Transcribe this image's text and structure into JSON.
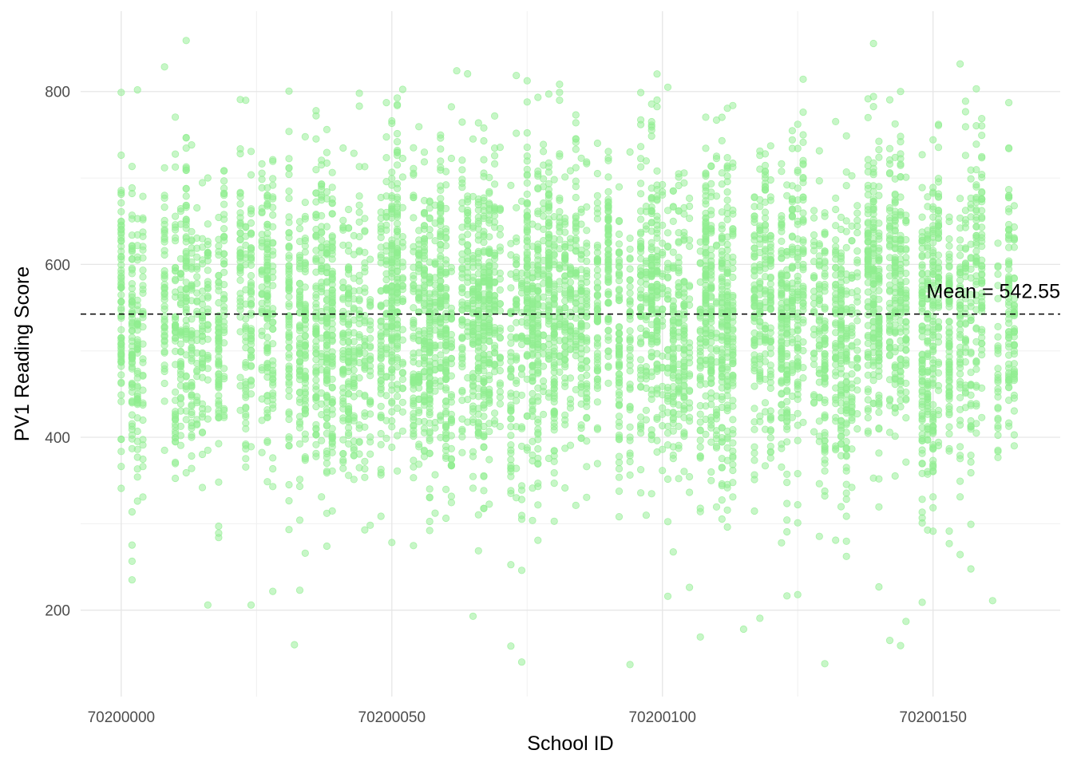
{
  "chart_data": {
    "type": "scatter",
    "title": "",
    "xlabel": "School ID",
    "ylabel": "PV1 Reading Score",
    "xlim": [
      70199992.5,
      70200173.5
    ],
    "ylim": [
      100,
      893
    ],
    "x_ticks": [
      70200000,
      70200050,
      70200100,
      70200150
    ],
    "x_tick_labels": [
      "70200000",
      "70200050",
      "70200100",
      "70200150"
    ],
    "y_ticks": [
      200,
      400,
      600,
      800
    ],
    "y_tick_labels": [
      "200",
      "400",
      "600",
      "800"
    ],
    "grid": true,
    "point_color": "#90EE90",
    "point_opacity": 0.5,
    "mean_line": {
      "value": 542.55,
      "label": "Mean = 542.55",
      "style": "dashed",
      "color": "#000000"
    },
    "summary": {
      "school_id_range": [
        70200000,
        70200165
      ],
      "score_range_approx": [
        138,
        860
      ],
      "typical_score_band": [
        350,
        720
      ]
    },
    "extreme_points": [
      {
        "x": 70200012,
        "y": 859
      },
      {
        "x": 70200155,
        "y": 832
      },
      {
        "x": 70200062,
        "y": 824
      },
      {
        "x": 70200101,
        "y": 805
      },
      {
        "x": 70200003,
        "y": 802
      },
      {
        "x": 70200144,
        "y": 800
      },
      {
        "x": 70200081,
        "y": 799
      },
      {
        "x": 70200044,
        "y": 798
      },
      {
        "x": 70200000,
        "y": 799
      },
      {
        "x": 70200016,
        "y": 206
      },
      {
        "x": 70200024,
        "y": 206
      },
      {
        "x": 70200065,
        "y": 193
      },
      {
        "x": 70200145,
        "y": 187
      },
      {
        "x": 70200115,
        "y": 178
      },
      {
        "x": 70200107,
        "y": 169
      },
      {
        "x": 70200142,
        "y": 165
      },
      {
        "x": 70200032,
        "y": 160
      },
      {
        "x": 70200144,
        "y": 159
      },
      {
        "x": 70200074,
        "y": 140
      },
      {
        "x": 70200094,
        "y": 137
      },
      {
        "x": 70200130,
        "y": 138
      },
      {
        "x": 70200125,
        "y": 218
      },
      {
        "x": 70200148,
        "y": 209
      },
      {
        "x": 70200161,
        "y": 211
      },
      {
        "x": 70200101,
        "y": 216
      }
    ]
  }
}
